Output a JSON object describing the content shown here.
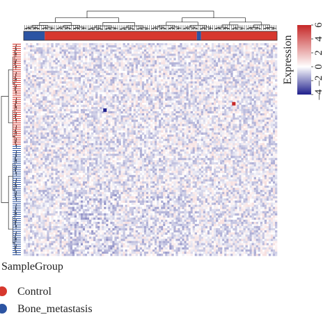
{
  "chart_data": {
    "type": "heatmap",
    "title": "",
    "color_scale": {
      "label": "Expression",
      "ticks": [
        -4,
        -2,
        0,
        2,
        4,
        6
      ],
      "min": -4,
      "max": 6,
      "low_color": "#1f1f8c",
      "mid_color": "#ffffff",
      "high_color": "#c62828"
    },
    "n_rows": 100,
    "n_cols": 120,
    "column_groups": {
      "title": "SampleGroup",
      "groups": [
        {
          "name": "Control",
          "color": "#d7382e"
        },
        {
          "name": "Bone_metastasis",
          "color": "#2c54a3"
        }
      ],
      "column_annotation": [
        {
          "group": "Bone_metastasis",
          "from": 0,
          "to": 9
        },
        {
          "group": "Control",
          "from": 10,
          "to": 81
        },
        {
          "group": "Bone_metastasis",
          "from": 82,
          "to": 83
        },
        {
          "group": "Control",
          "from": 84,
          "to": 119
        }
      ]
    },
    "row_groups": [
      {
        "group": "Control",
        "from": 0,
        "to": 47
      },
      {
        "group": "Bone_metastasis",
        "from": 48,
        "to": 99
      }
    ],
    "notable_cells": [
      {
        "row": 31,
        "col": 38,
        "value": -4
      },
      {
        "row": 28,
        "col": 99,
        "value": 6
      }
    ],
    "grid": false,
    "legend_position": "bottom-left"
  }
}
